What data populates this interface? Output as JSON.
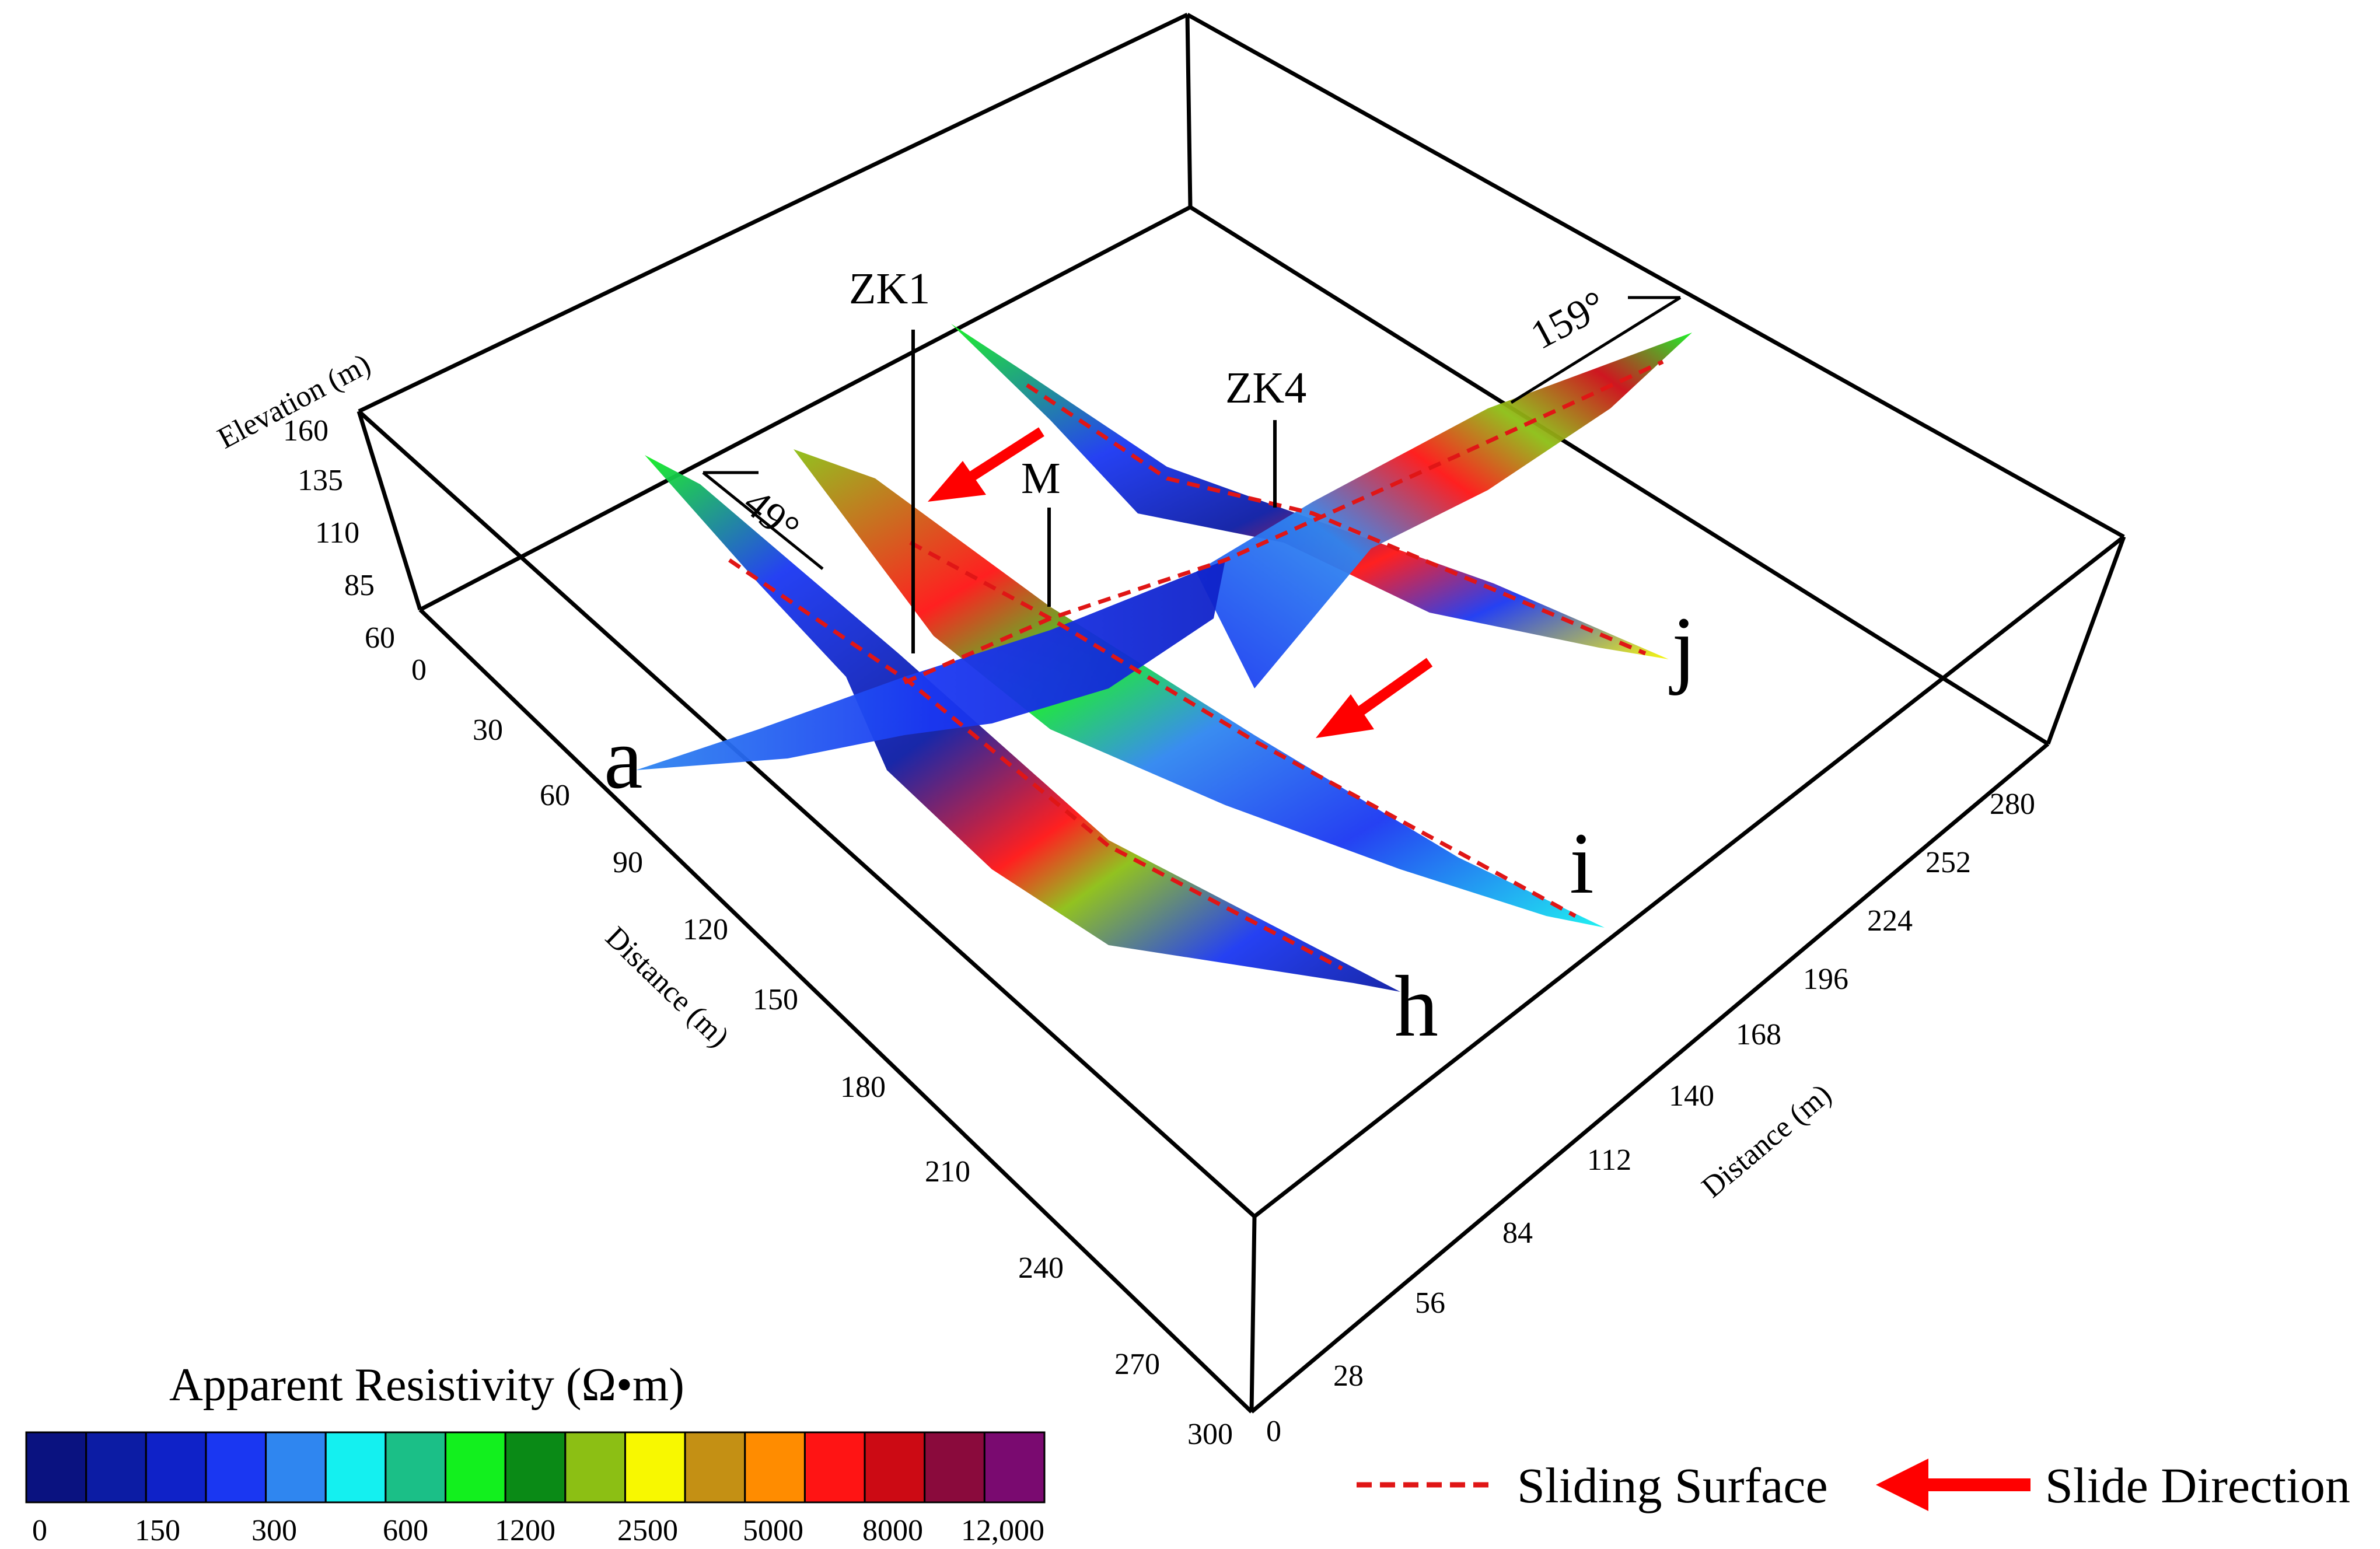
{
  "axes": {
    "elevation": {
      "title": "Elevation (m)",
      "ticks": [
        "160",
        "135",
        "110",
        "85",
        "60"
      ]
    },
    "distance_front": {
      "title": "Distance (m)",
      "ticks": [
        "0",
        "30",
        "60",
        "90",
        "120",
        "150",
        "180",
        "210",
        "240",
        "270",
        "300"
      ]
    },
    "distance_right": {
      "title": "Distance (m)",
      "ticks": [
        "0",
        "28",
        "56",
        "84",
        "112",
        "140",
        "168",
        "196",
        "224",
        "252",
        "280"
      ]
    }
  },
  "profiles": {
    "a": "a",
    "h": "h",
    "i": "i",
    "j": "j"
  },
  "boreholes": {
    "zk1": "ZK1",
    "zk4": "ZK4",
    "m": "M"
  },
  "angles": {
    "left": "49°",
    "right": "159°"
  },
  "legend": {
    "title": "Apparent Resistivity    (Ω•m)",
    "colors": [
      "#0a1280",
      "#0c1ca4",
      "#0f22c8",
      "#1a37f2",
      "#2f86f0",
      "#14f0f0",
      "#1bbf87",
      "#12f01e",
      "#0a8a16",
      "#8cbf14",
      "#f8f800",
      "#c49014",
      "#ff8c00",
      "#ff1414",
      "#cc0a14",
      "#8a0a3c",
      "#7a0a70"
    ],
    "ticks": [
      "0",
      "150",
      "300",
      "600",
      "1200",
      "2500",
      "5000",
      "8000",
      "12,000"
    ]
  },
  "key": {
    "sliding_surface": "Sliding Surface",
    "slide_direction": "Slide Direction",
    "sliding_surface_color": "#e01616",
    "slide_direction_color": "#ff0000"
  }
}
